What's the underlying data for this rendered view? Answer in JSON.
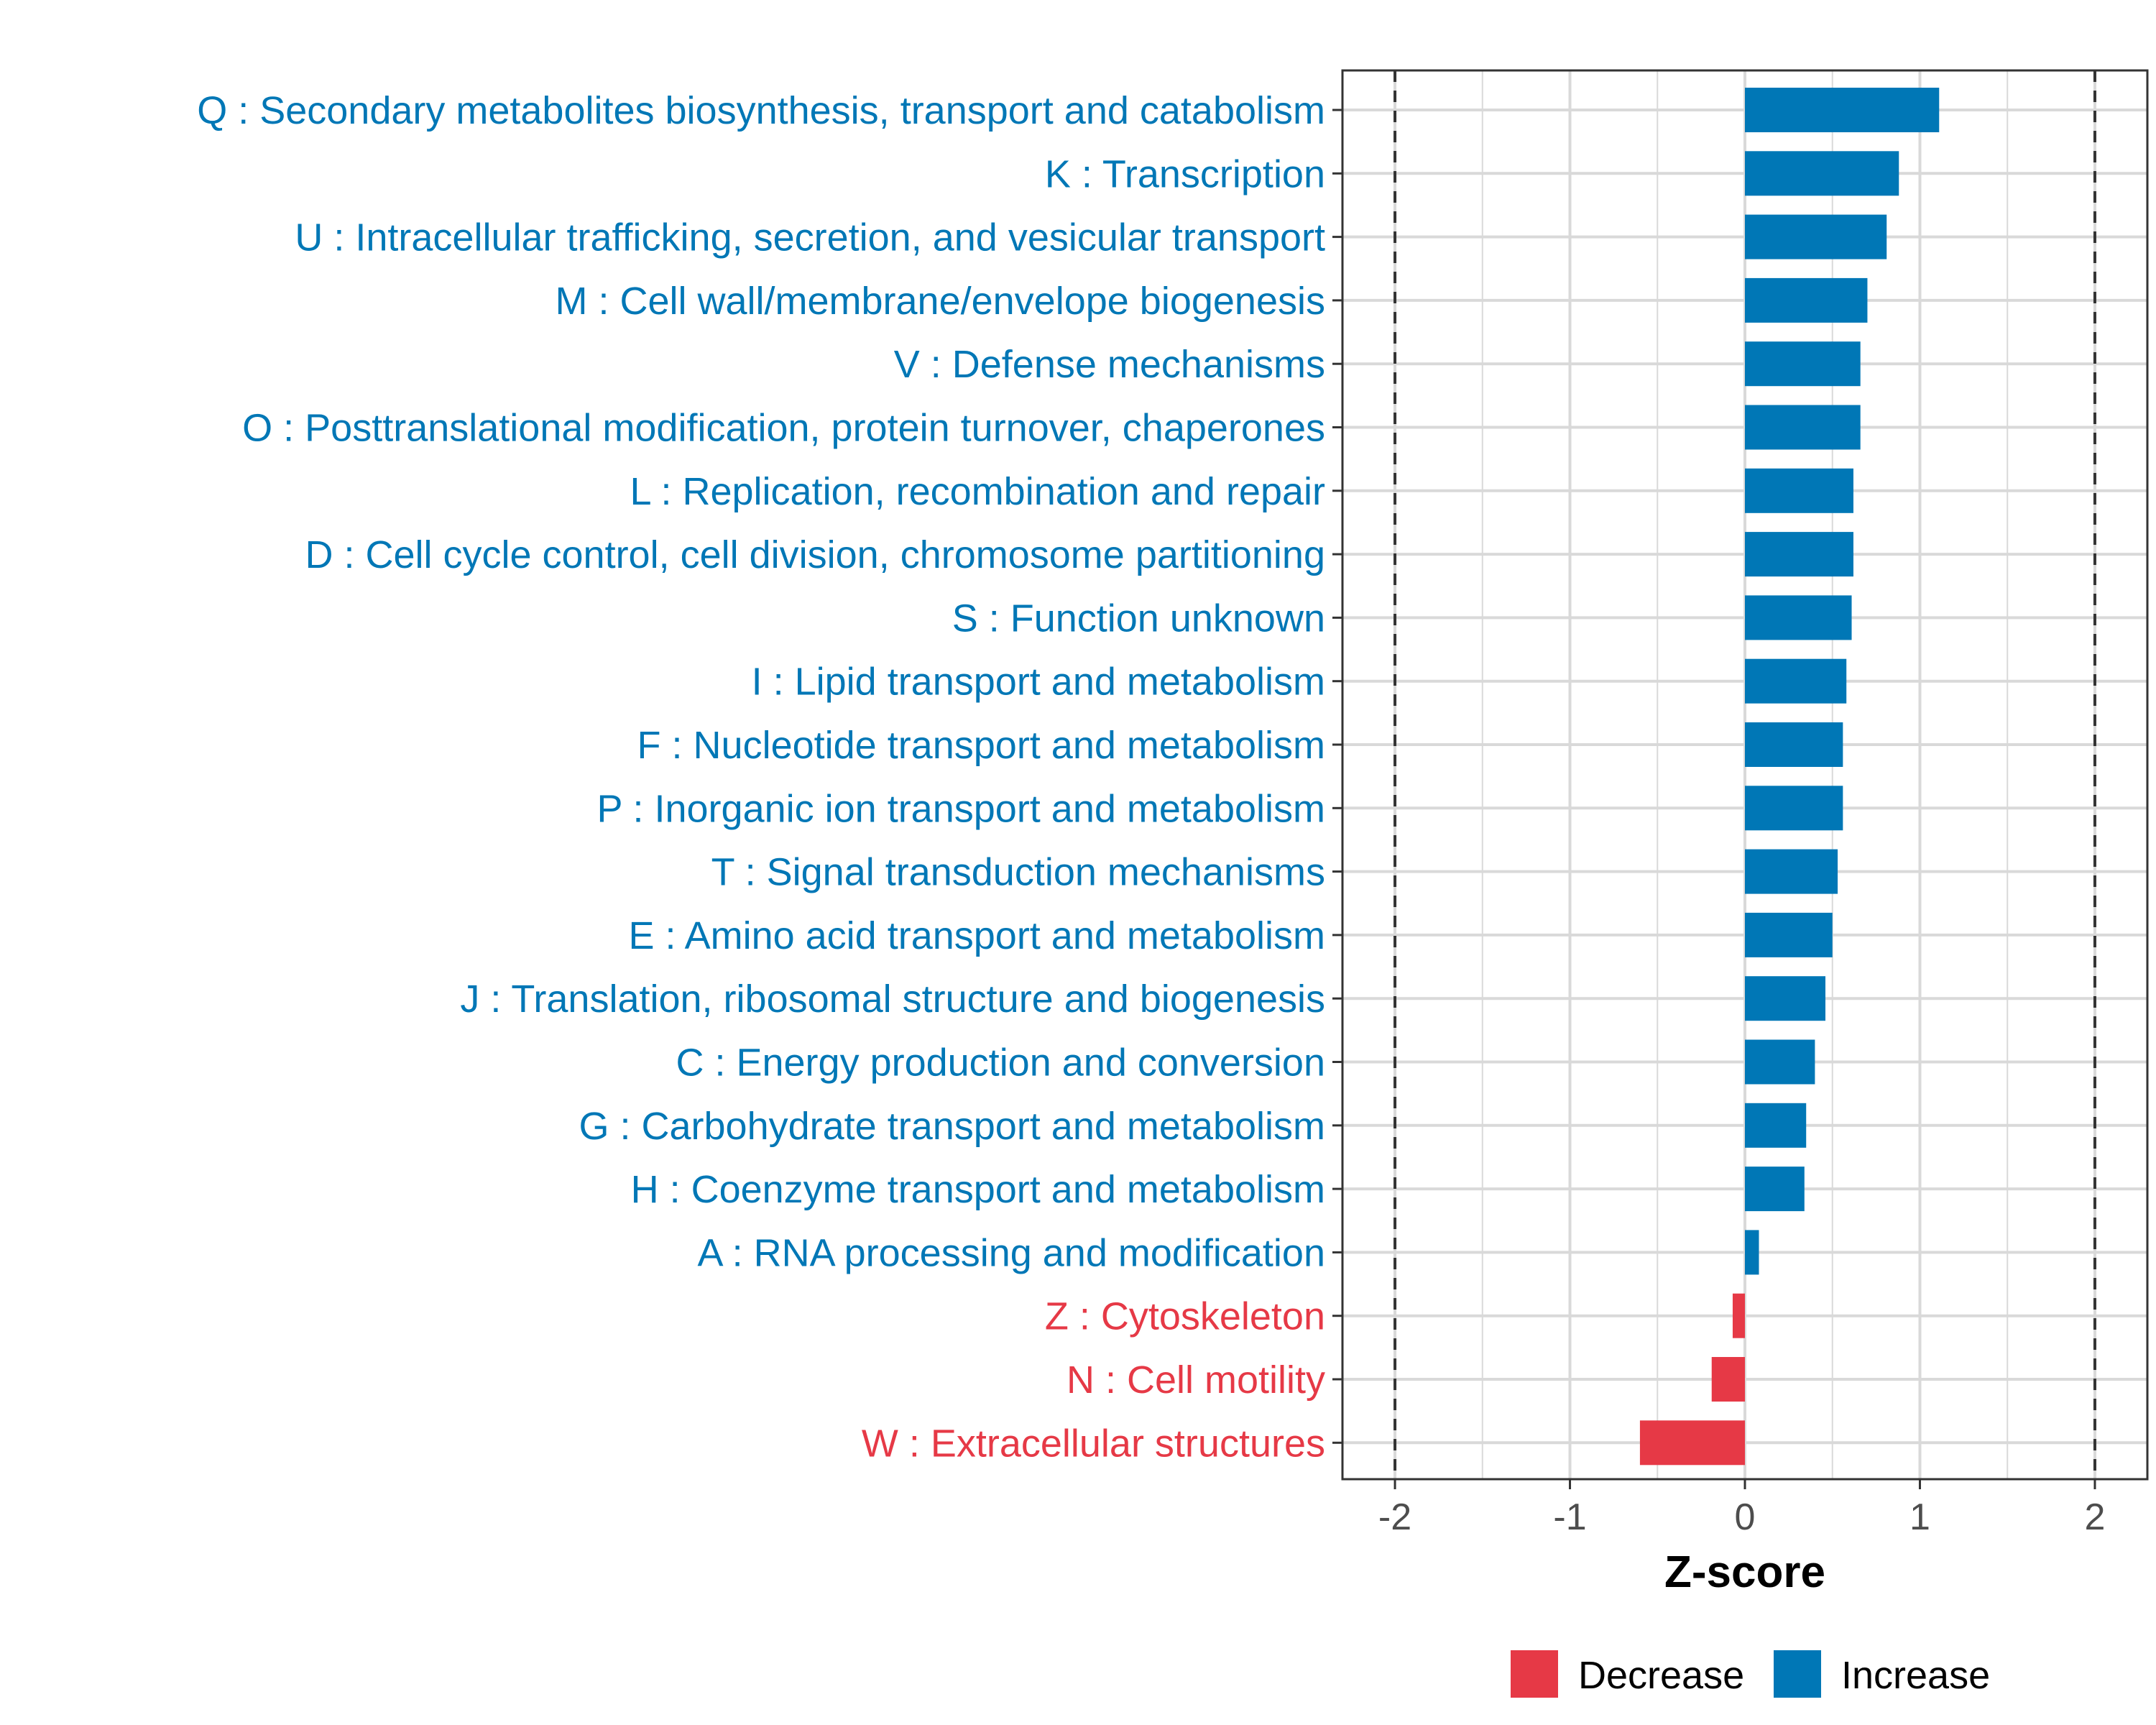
{
  "chart_data": {
    "type": "bar",
    "orientation": "horizontal",
    "xlabel": "Z-score",
    "xlim": [
      -2.3,
      2.3
    ],
    "xticks": [
      -2,
      -1,
      0,
      1,
      2
    ],
    "xtick_labels": [
      "-2",
      "-1",
      "0",
      "1",
      "2"
    ],
    "reference_lines": [
      -2,
      2
    ],
    "grid": true,
    "categories": [
      "Q : Secondary metabolites biosynthesis, transport and catabolism",
      "K : Transcription",
      "U : Intracellular trafficking, secretion, and vesicular transport",
      "M : Cell wall/membrane/envelope biogenesis",
      "V : Defense mechanisms",
      "O : Posttranslational modification, protein turnover, chaperones",
      "L : Replication, recombination and repair",
      "D : Cell cycle control, cell division, chromosome partitioning",
      "S : Function unknown",
      "I : Lipid transport and metabolism",
      "F : Nucleotide transport and metabolism",
      "P : Inorganic ion transport and metabolism",
      "T : Signal transduction mechanisms",
      "E : Amino acid transport and metabolism",
      "J : Translation, ribosomal structure and biogenesis",
      "C : Energy production and conversion",
      "G : Carbohydrate transport and metabolism",
      "H : Coenzyme transport and metabolism",
      "A : RNA processing and modification",
      "Z : Cytoskeleton",
      "N : Cell motility",
      "W : Extracellular structures"
    ],
    "values": [
      1.11,
      0.88,
      0.81,
      0.7,
      0.66,
      0.66,
      0.62,
      0.62,
      0.61,
      0.58,
      0.56,
      0.56,
      0.53,
      0.5,
      0.46,
      0.4,
      0.35,
      0.34,
      0.08,
      -0.07,
      -0.19,
      -0.6
    ],
    "legend": {
      "position": "bottom",
      "entries": [
        {
          "label": "Decrease",
          "color": "#e63946"
        },
        {
          "label": "Increase",
          "color": "#0077b6"
        }
      ]
    }
  },
  "colors": {
    "increase": "#0077b6",
    "decrease": "#e63946",
    "grid": "#d9d9d9",
    "panel_border": "#333333",
    "reference_line": "#333333"
  }
}
